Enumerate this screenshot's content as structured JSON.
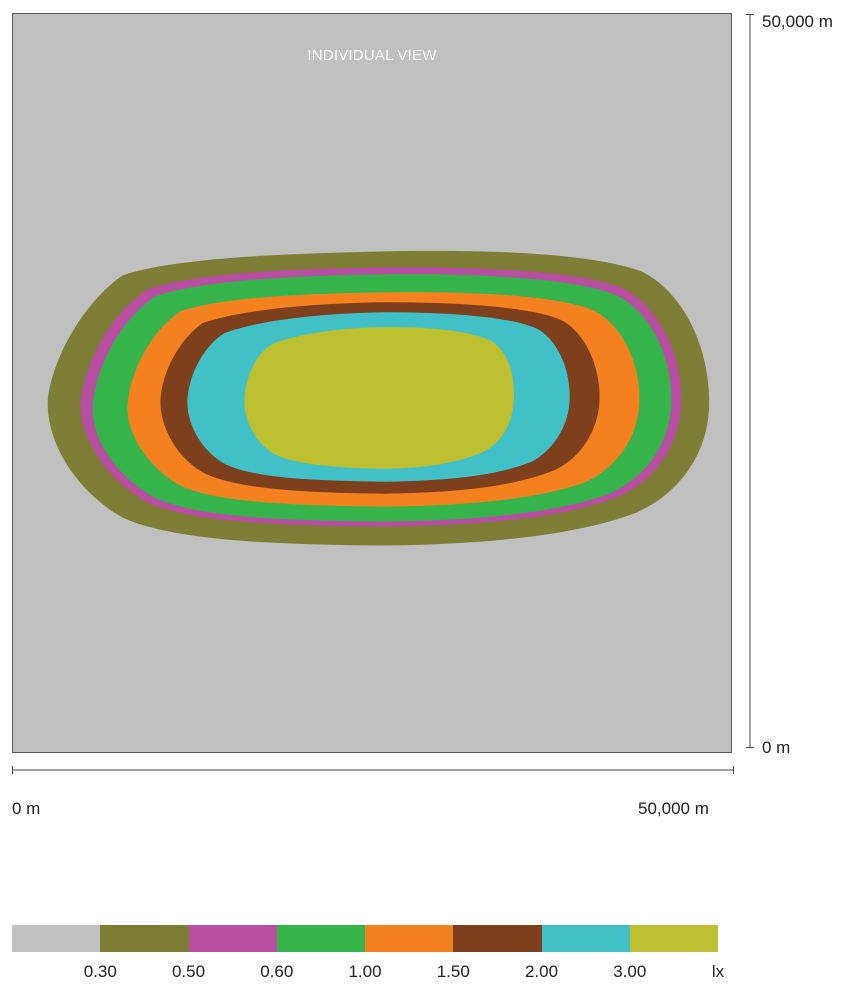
{
  "view": {
    "title": "INDIVIDUAL VIEW"
  },
  "axes": {
    "y_top_label": "50,000 m",
    "y_bottom_label": "0 m",
    "x_left_label": "0 m",
    "x_right_label": "50,000 m"
  },
  "legend": {
    "colors": [
      "#c0c0c0",
      "#7e7e36",
      "#b94fa3",
      "#34b44a",
      "#f48120",
      "#7e3f1c",
      "#41c0c8",
      "#bcbf2f"
    ],
    "thresholds": [
      "0.30",
      "0.50",
      "0.60",
      "1.00",
      "1.50",
      "2.00",
      "3.00"
    ],
    "unit": "lx"
  },
  "contour_colors": {
    "background": "#c0c0c0",
    "band_1": "#7e7e36",
    "band_2": "#b94fa3",
    "band_3": "#34b44a",
    "band_4": "#f48120",
    "band_5": "#7e3f1c",
    "band_6": "#41c0c8",
    "band_7": "#bcbf2f"
  }
}
